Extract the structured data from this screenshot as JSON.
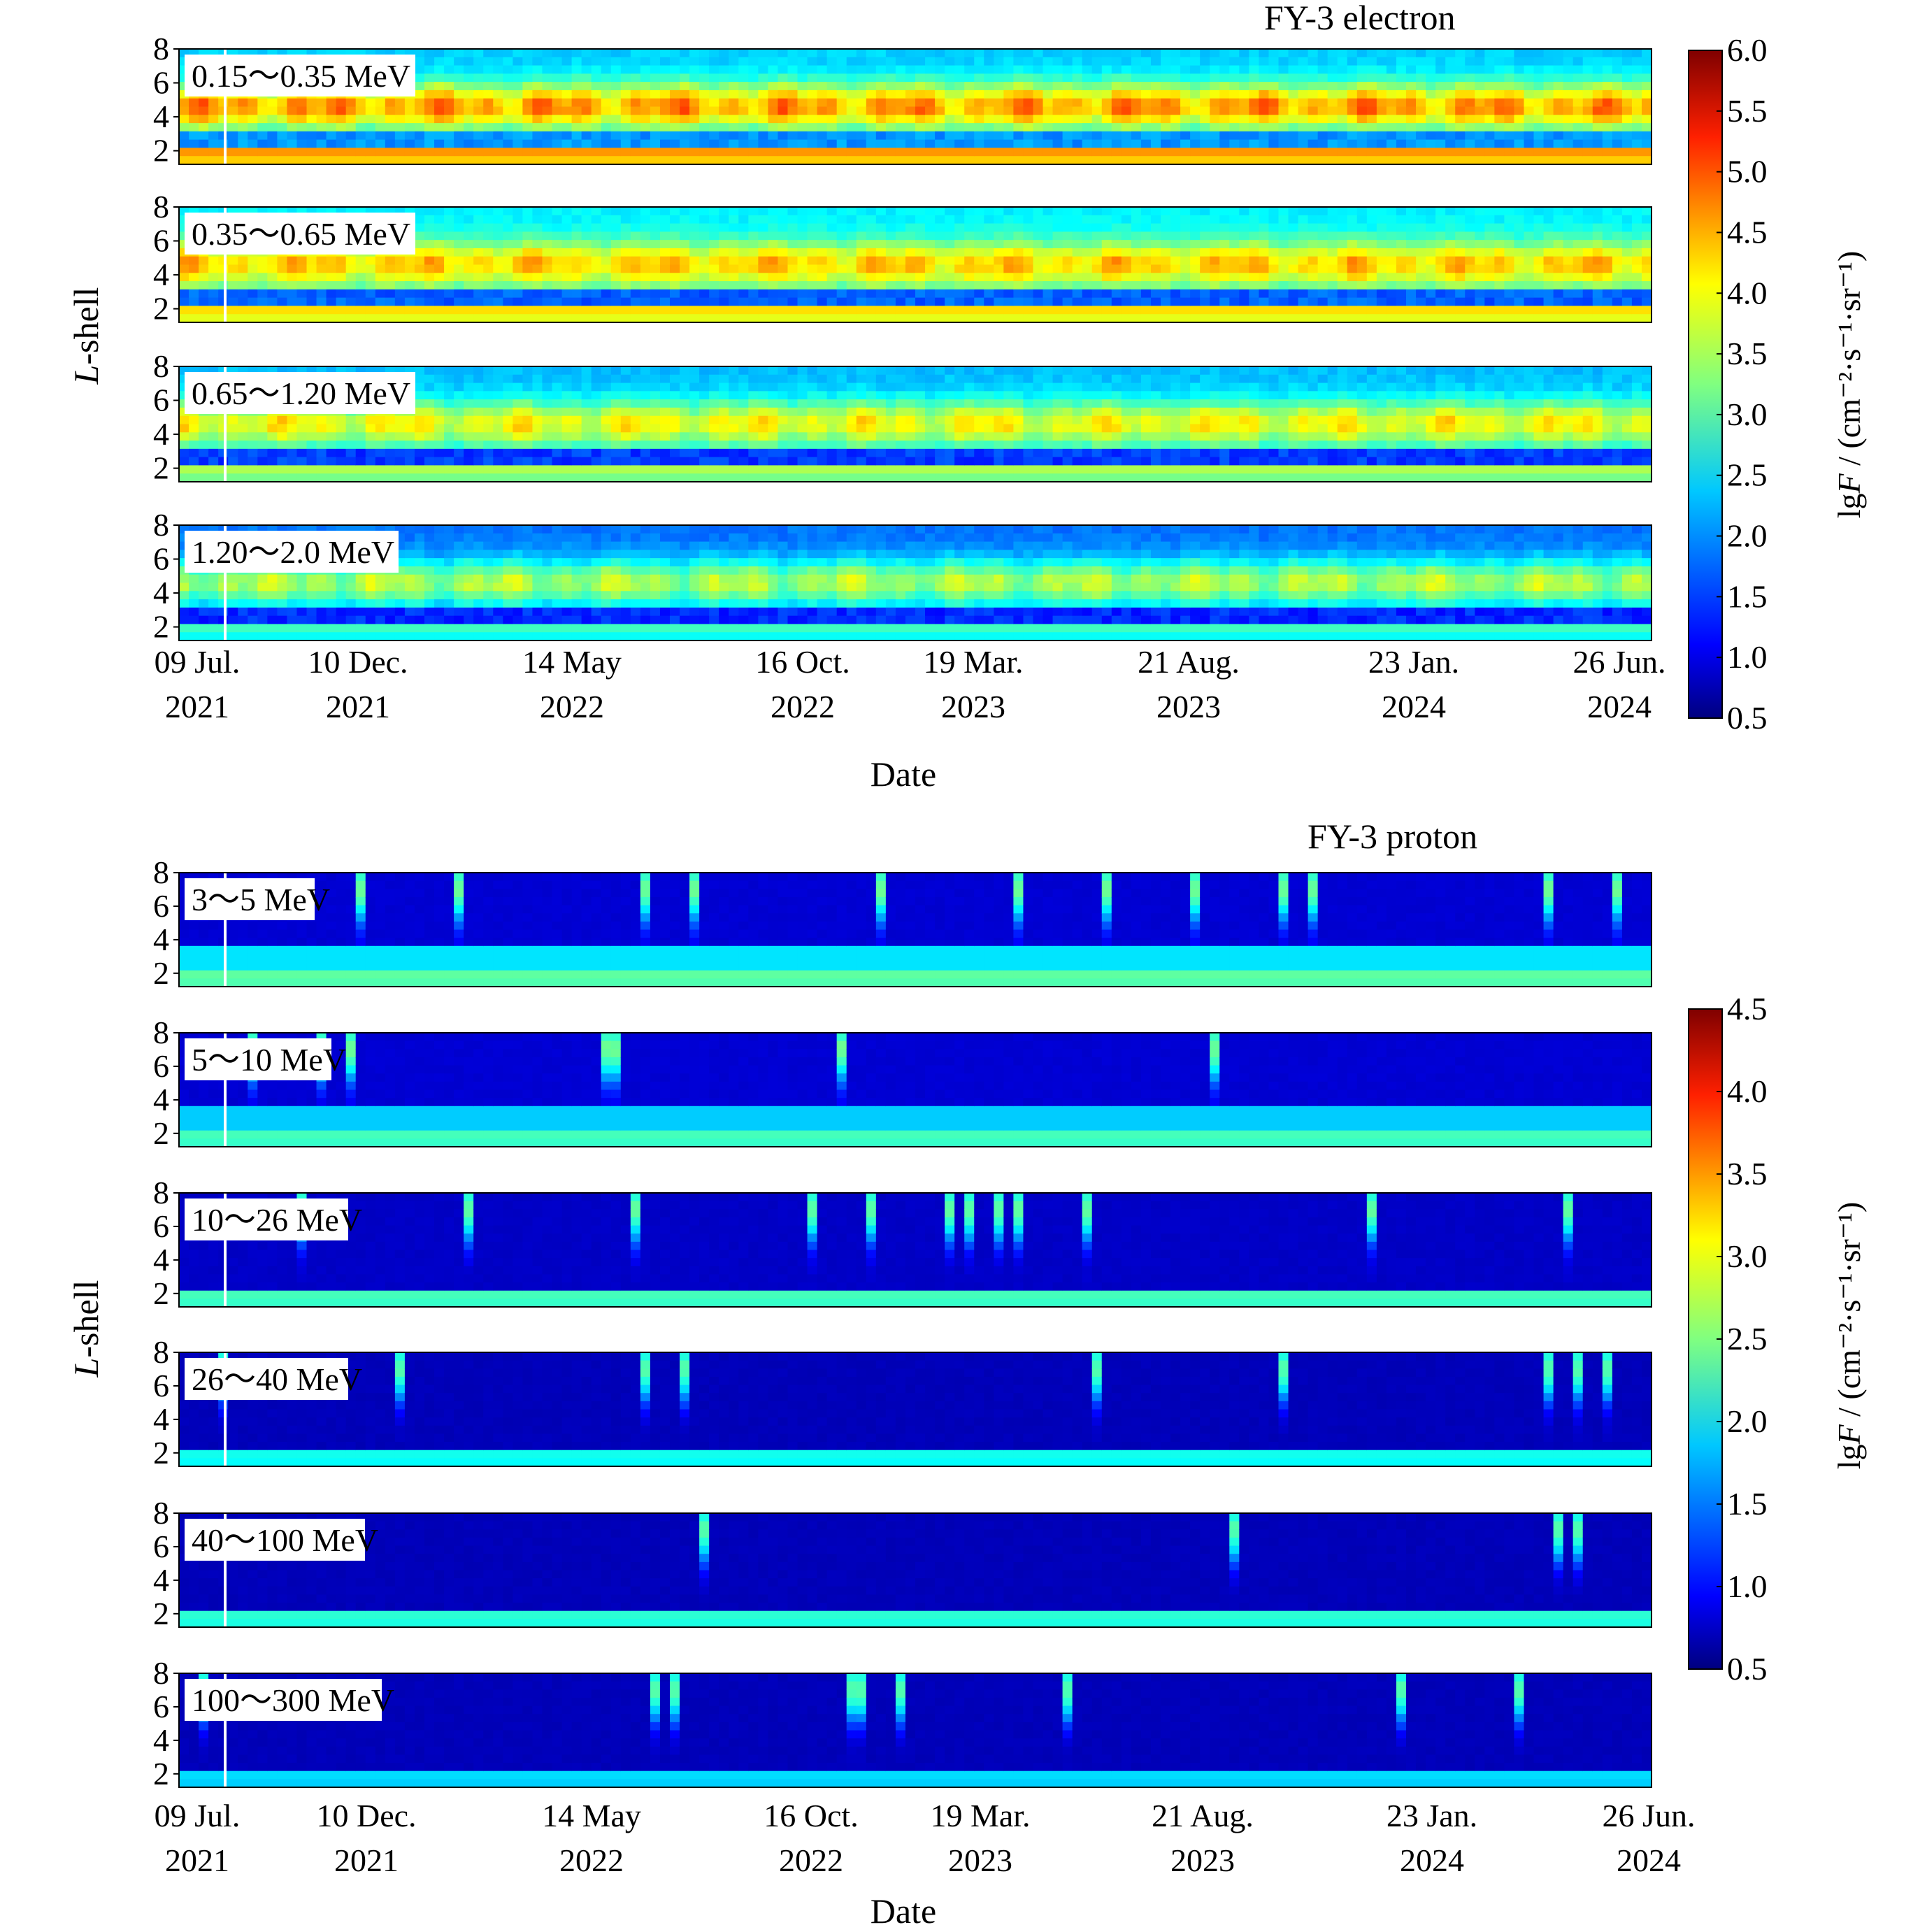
{
  "chart_data": [
    {
      "type": "heatmap",
      "title": "FY-3 electron",
      "xlabel": "Date",
      "ylabel": "L-shell",
      "yticks": [
        "8",
        "6",
        "4",
        "2"
      ],
      "ylim": [
        1.2,
        8
      ],
      "xtick_labels": [
        {
          "date": "09 Jul.",
          "year": "2021"
        },
        {
          "date": "10 Dec.",
          "year": "2021"
        },
        {
          "date": "14 May",
          "year": "2022"
        },
        {
          "date": "16 Oct.",
          "year": "2022"
        },
        {
          "date": "19 Mar.",
          "year": "2023"
        },
        {
          "date": "21 Aug.",
          "year": "2023"
        },
        {
          "date": "23 Jan.",
          "year": "2024"
        },
        {
          "date": "26 Jun.",
          "year": "2024"
        }
      ],
      "colorbar": {
        "label_prefix": "lg",
        "label_var": "F",
        "label_units": " / (cm⁻²·s⁻¹·sr⁻¹)",
        "ticks": [
          "6.0",
          "5.5",
          "5.0",
          "4.5",
          "4.0",
          "3.5",
          "3.0",
          "2.5",
          "2.0",
          "1.5",
          "1.0",
          "0.5"
        ],
        "range": [
          0.5,
          6.0
        ]
      },
      "panels": [
        {
          "label": "0.15～0.35 MeV",
          "slot": 1.8,
          "belt": 4.6,
          "peak": 5.0,
          "bg": 2.3
        },
        {
          "label": "0.35～0.65 MeV",
          "slot": 1.5,
          "belt": 4.2,
          "peak": 4.6,
          "bg": 2.5
        },
        {
          "label": "0.65～1.20 MeV",
          "slot": 1.3,
          "belt": 3.6,
          "peak": 4.3,
          "bg": 2.2
        },
        {
          "label": "1.20～2.0 MeV",
          "slot": 1.2,
          "belt": 3.0,
          "peak": 3.9,
          "bg": 1.8
        }
      ]
    },
    {
      "type": "heatmap",
      "title": "FY-3 proton",
      "xlabel": "Date",
      "ylabel": "L-shell",
      "yticks": [
        "8",
        "6",
        "4",
        "2"
      ],
      "ylim": [
        1.2,
        8
      ],
      "xtick_labels": [
        {
          "date": "09 Jul.",
          "year": "2021"
        },
        {
          "date": "10 Dec.",
          "year": "2021"
        },
        {
          "date": "14 May",
          "year": "2022"
        },
        {
          "date": "16 Oct.",
          "year": "2022"
        },
        {
          "date": "19 Mar.",
          "year": "2023"
        },
        {
          "date": "21 Aug.",
          "year": "2023"
        },
        {
          "date": "23 Jan.",
          "year": "2024"
        },
        {
          "date": "26 Jun.",
          "year": "2024"
        }
      ],
      "colorbar": {
        "label_prefix": "lg",
        "label_var": "F",
        "label_units": " / (cm⁻²·s⁻¹·sr⁻¹)",
        "ticks": [
          "4.5",
          "4.0",
          "3.5",
          "3.0",
          "2.5",
          "2.0",
          "1.5",
          "1.0",
          "0.5"
        ],
        "range": [
          0.5,
          4.5
        ]
      },
      "panels": [
        {
          "label": "3～5 MeV",
          "inner": 2.4,
          "bg": 0.8
        },
        {
          "label": "5～10 MeV",
          "inner": 2.3,
          "bg": 0.8
        },
        {
          "label": "10～26 MeV",
          "inner": 2.3,
          "bg": 0.75
        },
        {
          "label": "26～40 MeV",
          "inner": 2.1,
          "bg": 0.7
        },
        {
          "label": "40～100 MeV",
          "inner": 2.2,
          "bg": 0.7
        },
        {
          "label": "100～300 MeV",
          "inner": 1.9,
          "bg": 0.7
        }
      ]
    }
  ]
}
